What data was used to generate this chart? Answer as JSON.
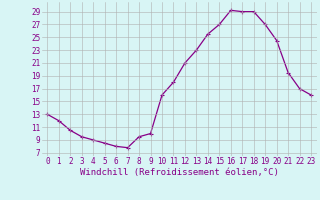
{
  "x": [
    0,
    1,
    2,
    3,
    4,
    5,
    6,
    7,
    8,
    9,
    10,
    11,
    12,
    13,
    14,
    15,
    16,
    17,
    18,
    19,
    20,
    21,
    22,
    23
  ],
  "y": [
    13,
    12,
    10.5,
    9.5,
    9.0,
    8.5,
    8.0,
    7.8,
    9.5,
    10.0,
    16.0,
    18.0,
    21.0,
    23.0,
    25.5,
    27.0,
    29.2,
    29.0,
    29.0,
    27.0,
    24.5,
    19.5,
    17.0,
    16.0
  ],
  "line_color": "#880088",
  "marker": "+",
  "marker_size": 3,
  "linewidth": 0.9,
  "xlabel": "Windchill (Refroidissement éolien,°C)",
  "xlabel_fontsize": 6.5,
  "yticks": [
    7,
    9,
    11,
    13,
    15,
    17,
    19,
    21,
    23,
    25,
    27,
    29
  ],
  "xlim": [
    -0.5,
    23.5
  ],
  "ylim": [
    6.5,
    30.5
  ],
  "background_color": "#d8f5f5",
  "grid_color": "#b0b0b0",
  "tick_color": "#880088",
  "tick_fontsize": 5.5
}
